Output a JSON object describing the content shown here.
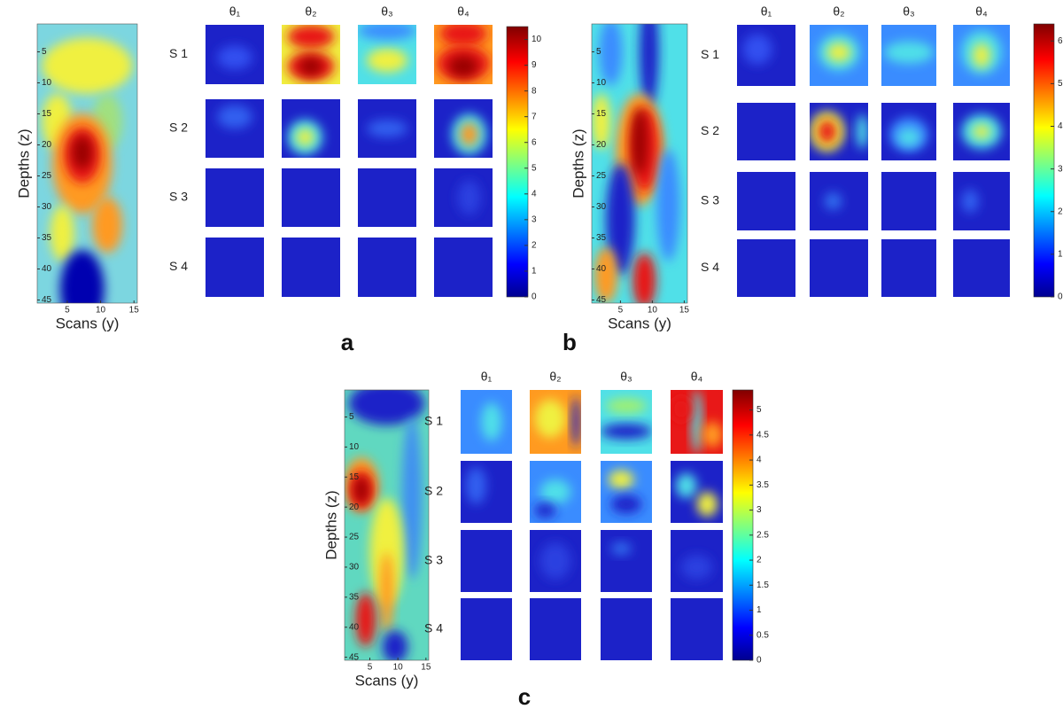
{
  "panels": [
    {
      "label": "a",
      "y_label": "Depths (z)",
      "x_label": "Scans (y)",
      "yticks": [
        5,
        10,
        15,
        20,
        25,
        30,
        35,
        40,
        45
      ],
      "xticks": [
        5,
        10,
        15
      ],
      "columns": [
        "θ₁",
        "θ₂",
        "θ₃",
        "θ₄"
      ],
      "rows": [
        "S 1",
        "S 2",
        "S 3",
        "S 4"
      ],
      "colorbar_lim": [
        0,
        10.5
      ],
      "colorbar_ticks": [
        0,
        1,
        2,
        3,
        4,
        5,
        6,
        7,
        8,
        9,
        10
      ]
    },
    {
      "label": "b",
      "y_label": "Depths (z)",
      "x_label": "Scans (y)",
      "yticks": [
        5,
        10,
        15,
        20,
        25,
        30,
        35,
        40,
        45
      ],
      "xticks": [
        5,
        10,
        15
      ],
      "columns": [
        "θ₁",
        "θ₂",
        "θ₃",
        "θ₄"
      ],
      "rows": [
        "S 1",
        "S 2",
        "S 3",
        "S 4"
      ],
      "colorbar_lim": [
        0,
        6.4
      ],
      "colorbar_ticks": [
        0,
        1,
        2,
        3,
        4,
        5,
        6
      ]
    },
    {
      "label": "c",
      "y_label": "Depths (z)",
      "x_label": "Scans (y)",
      "yticks": [
        5,
        10,
        15,
        20,
        25,
        30,
        35,
        40,
        45
      ],
      "xticks": [
        5,
        10,
        15
      ],
      "columns": [
        "θ₁",
        "θ₂",
        "θ₃",
        "θ₄"
      ],
      "rows": [
        "S 1",
        "S 2",
        "S 3",
        "S 4"
      ],
      "colorbar_lim": [
        0,
        5.4
      ],
      "colorbar_ticks": [
        0,
        0.5,
        1,
        1.5,
        2,
        2.5,
        3,
        3.5,
        4,
        4.5,
        5
      ]
    }
  ]
}
